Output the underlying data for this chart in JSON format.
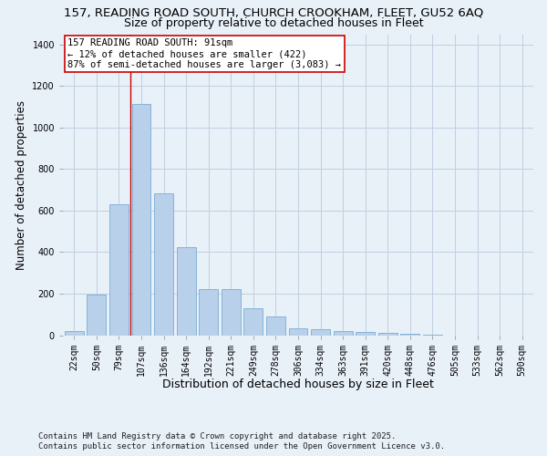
{
  "title_line1": "157, READING ROAD SOUTH, CHURCH CROOKHAM, FLEET, GU52 6AQ",
  "title_line2": "Size of property relative to detached houses in Fleet",
  "xlabel": "Distribution of detached houses by size in Fleet",
  "ylabel": "Number of detached properties",
  "categories": [
    "22sqm",
    "50sqm",
    "79sqm",
    "107sqm",
    "136sqm",
    "164sqm",
    "192sqm",
    "221sqm",
    "249sqm",
    "278sqm",
    "306sqm",
    "334sqm",
    "363sqm",
    "391sqm",
    "420sqm",
    "448sqm",
    "476sqm",
    "505sqm",
    "533sqm",
    "562sqm",
    "590sqm"
  ],
  "values": [
    20,
    195,
    630,
    1115,
    685,
    425,
    220,
    220,
    130,
    90,
    35,
    30,
    18,
    15,
    10,
    5,
    2,
    0,
    0,
    0,
    0
  ],
  "bar_color": "#b8d0ea",
  "bar_edge_color": "#7aadd4",
  "vline_color": "#cc0000",
  "annotation_text": "157 READING ROAD SOUTH: 91sqm\n← 12% of detached houses are smaller (422)\n87% of semi-detached houses are larger (3,083) →",
  "annotation_box_color": "#cc0000",
  "annotation_bg": "#ffffff",
  "ylim": [
    0,
    1450
  ],
  "yticks": [
    0,
    200,
    400,
    600,
    800,
    1000,
    1200,
    1400
  ],
  "grid_color": "#c0d0e0",
  "bg_color": "#e8f0f8",
  "footer_text": "Contains HM Land Registry data © Crown copyright and database right 2025.\nContains public sector information licensed under the Open Government Licence v3.0.",
  "title_fontsize": 9.5,
  "subtitle_fontsize": 9,
  "xlabel_fontsize": 9,
  "ylabel_fontsize": 8.5,
  "tick_fontsize": 7,
  "annotation_fontsize": 7.5,
  "footer_fontsize": 6.5
}
